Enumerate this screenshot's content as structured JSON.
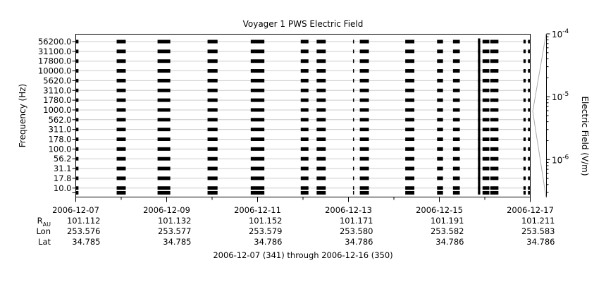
{
  "chart_data": {
    "type": "heatmap",
    "title": "Voyager 1 PWS Electric Field",
    "ylabel": "Frequency (Hz)",
    "colorbar_label": "Electric Field (V/m)",
    "xlabel": "2006-12-07 (341) through 2006-12-16 (350)",
    "y_ticks": [
      "56200.0",
      "31100.0",
      "17800.0",
      "10000.0",
      "5620.0",
      "3110.0",
      "1780.0",
      "1000.0",
      "562.0",
      "311.0",
      "178.0",
      "100.0",
      "56.2",
      "31.1",
      "17.8",
      "10.0"
    ],
    "y_channels": [
      56200,
      31100,
      17800,
      10000,
      5620,
      3110,
      1780,
      1000,
      562,
      311,
      178,
      100,
      56.2,
      31.1,
      17.8,
      10
    ],
    "x_range_days": [
      "2006-12-07",
      "2006-12-17"
    ],
    "x_ticks": [
      "2006-12-07",
      "2006-12-09",
      "2006-12-11",
      "2006-12-13",
      "2006-12-15",
      "2006-12-17"
    ],
    "colorbar": {
      "scale": "log",
      "range": [
        2.5e-07,
        0.0001
      ],
      "tick_labels": [
        {
          "value": 0.0001,
          "base": "10",
          "exp": "-4"
        },
        {
          "value": 1e-05,
          "base": "10",
          "exp": "-5"
        },
        {
          "value": 1e-06,
          "base": "10",
          "exp": "-6"
        }
      ]
    },
    "observation_intervals_days": [
      [
        0.0,
        0.06
      ],
      [
        0.9,
        1.1
      ],
      [
        1.8,
        2.08
      ],
      [
        2.9,
        3.12
      ],
      [
        3.85,
        4.15
      ],
      [
        4.95,
        5.12
      ],
      [
        5.3,
        5.5
      ],
      [
        6.1,
        6.12
      ],
      [
        6.25,
        6.45
      ],
      [
        7.25,
        7.45
      ],
      [
        7.95,
        8.08
      ],
      [
        8.3,
        8.45
      ],
      [
        8.85,
        8.9
      ],
      [
        8.95,
        9.1
      ],
      [
        9.12,
        9.3
      ],
      [
        9.85,
        9.9
      ],
      [
        9.95,
        10.0
      ]
    ],
    "grid": true,
    "legend": "none"
  },
  "ephemeris": {
    "row_labels": {
      "r_main": "R",
      "r_sub": "AU",
      "lon": "Lon",
      "lat": "Lat"
    },
    "columns": [
      {
        "date": "2006-12-07",
        "r": "101.112",
        "lon": "253.576",
        "lat": "34.785"
      },
      {
        "date": "2006-12-09",
        "r": "101.132",
        "lon": "253.577",
        "lat": "34.785"
      },
      {
        "date": "2006-12-11",
        "r": "101.152",
        "lon": "253.579",
        "lat": "34.786"
      },
      {
        "date": "2006-12-13",
        "r": "101.171",
        "lon": "253.580",
        "lat": "34.786"
      },
      {
        "date": "2006-12-15",
        "r": "101.191",
        "lon": "253.582",
        "lat": "34.786"
      },
      {
        "date": "2006-12-17",
        "r": "101.211",
        "lon": "253.583",
        "lat": "34.786"
      }
    ]
  }
}
